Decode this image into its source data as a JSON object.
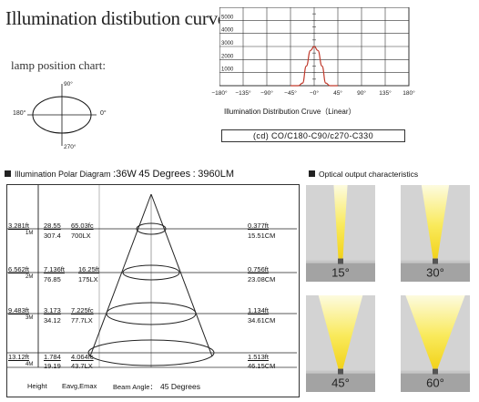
{
  "title": "Illumination distibution curve",
  "lamp_chart": {
    "label": "lamp position chart:",
    "angles": {
      "top": "90°",
      "left": "180°",
      "right": "0°",
      "bottom": "270°"
    }
  },
  "distribution_chart": {
    "y_ticks": [
      "5000",
      "4000",
      "3000",
      "2000",
      "1000"
    ],
    "x_ticks": [
      "−180°",
      "−135°",
      "−90°",
      "−45°",
      "−0°",
      "45°",
      "90°",
      "135°",
      "180°"
    ],
    "caption": "Illumination Distribution Cruve（Linear）",
    "code": "(cd) CO/C180-C90/c270-C330",
    "curve_color": "#c0392b"
  },
  "chart_data": {
    "type": "line",
    "x": [
      -45,
      -30,
      -22,
      -15,
      -7,
      0,
      7,
      15,
      22,
      30,
      45
    ],
    "series": [
      {
        "values": [
          0,
          0,
          200,
          1500,
          2700,
          3000,
          2700,
          1500,
          200,
          0,
          0
        ]
      }
    ],
    "xlim": [
      -180,
      180
    ],
    "ylim": [
      0,
      6000
    ],
    "y_tick_values": [
      1000,
      2000,
      3000,
      4000,
      5000
    ],
    "grid": true
  },
  "polar_diagram": {
    "heading_label": "Illumination Polar Diagram",
    "power": "36W",
    "degrees_text": "45 Degrees",
    "lumen": "3960LM",
    "rows": [
      {
        "ft": "3.281ft",
        "m": "1M",
        "emax_fc": "28.55",
        "eavg_fc": "65.03fc",
        "emax_lx": "307.4",
        "eavg_lx": "700LX",
        "dia_ft": "0.377ft",
        "dia_cm": "15.51CM"
      },
      {
        "ft": "6.562ft",
        "m": "2M",
        "emax_fc": "7.136ft",
        "eavg_fc": "16.25ft",
        "emax_lx": "76.85",
        "eavg_lx": "175LX",
        "dia_ft": "0.756ft",
        "dia_cm": "23.08CM"
      },
      {
        "ft": "9.483ft",
        "m": "3M",
        "emax_fc": "3.173",
        "eavg_fc": "7.225fc",
        "emax_lx": "34.12",
        "eavg_lx": "77.7LX",
        "dia_ft": "1.134ft",
        "dia_cm": "34.61CM"
      },
      {
        "ft": "13.12ft",
        "m": "4M",
        "emax_fc": "1.784",
        "eavg_fc": "4.064fc",
        "emax_lx": "19.19",
        "eavg_lx": "43.7LX",
        "dia_ft": "1.513ft",
        "dia_cm": "46.15CM"
      }
    ],
    "footer": {
      "height": "Height",
      "eavg": "Eavg,Emax",
      "beam_label": "Beam Angle：",
      "beam_value": "45 Degrees"
    }
  },
  "optical": {
    "heading": "Optical output characteristics",
    "panels": [
      {
        "angle": "15°",
        "beam_half": 0.1
      },
      {
        "angle": "30°",
        "beam_half": 0.2
      },
      {
        "angle": "45°",
        "beam_half": 0.32
      },
      {
        "angle": "60°",
        "beam_half": 0.43
      }
    ]
  }
}
